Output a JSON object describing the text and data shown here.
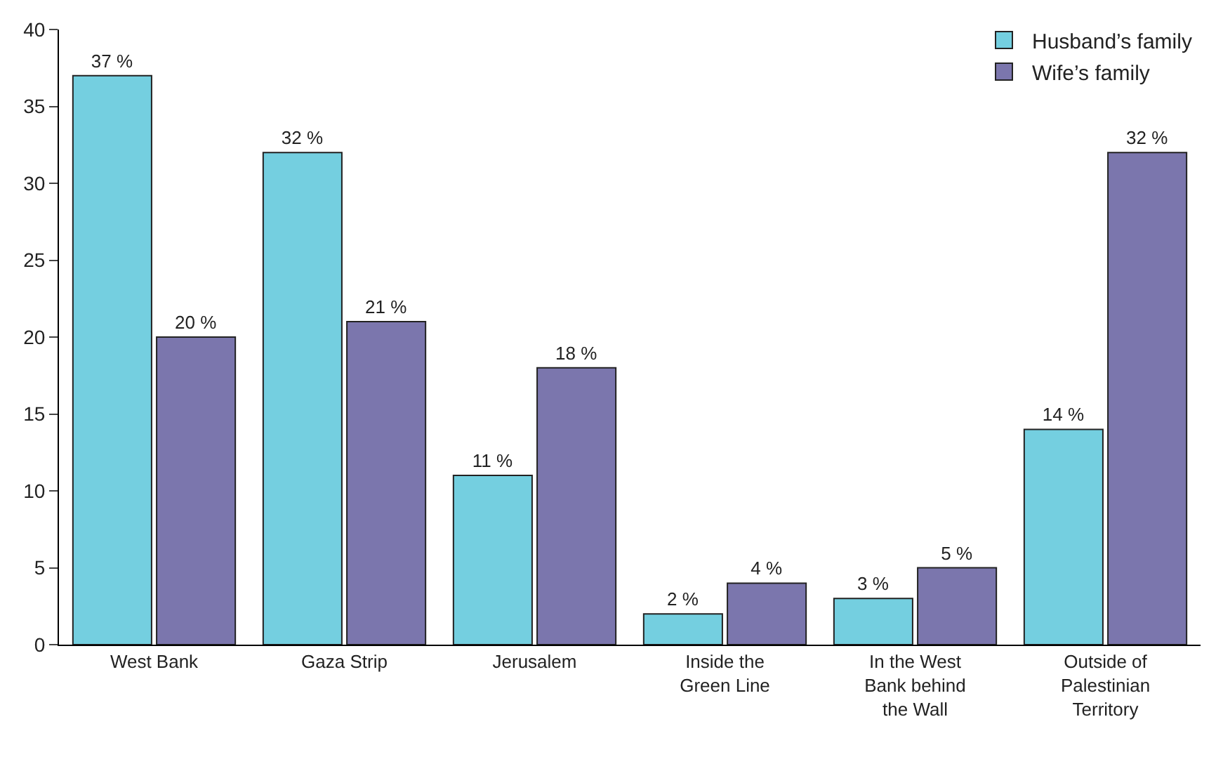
{
  "chart_data": {
    "type": "bar",
    "categories": [
      "West Bank",
      "Gaza Strip",
      "Jerusalem",
      "Inside the\nGreen Line",
      "In the West\nBank behind\nthe Wall",
      "Outside of\nPalestinian\nTerritory"
    ],
    "series": [
      {
        "name": "Husband’s family",
        "color": "#74cfe0",
        "values": [
          37,
          32,
          11,
          2,
          3,
          14
        ],
        "value_labels": [
          "37 %",
          "32 %",
          "11 %",
          "2 %",
          "3 %",
          "14 %"
        ]
      },
      {
        "name": "Wife’s family",
        "color": "#7b76ad",
        "values": [
          20,
          21,
          18,
          4,
          5,
          32
        ],
        "value_labels": [
          "20 %",
          "21 %",
          "18 %",
          "4 %",
          "5 %",
          "32 %"
        ]
      }
    ],
    "ylim": [
      0,
      40
    ],
    "yticks": [
      0,
      5,
      10,
      15,
      20,
      25,
      30,
      35,
      40
    ],
    "legend": "top right"
  }
}
